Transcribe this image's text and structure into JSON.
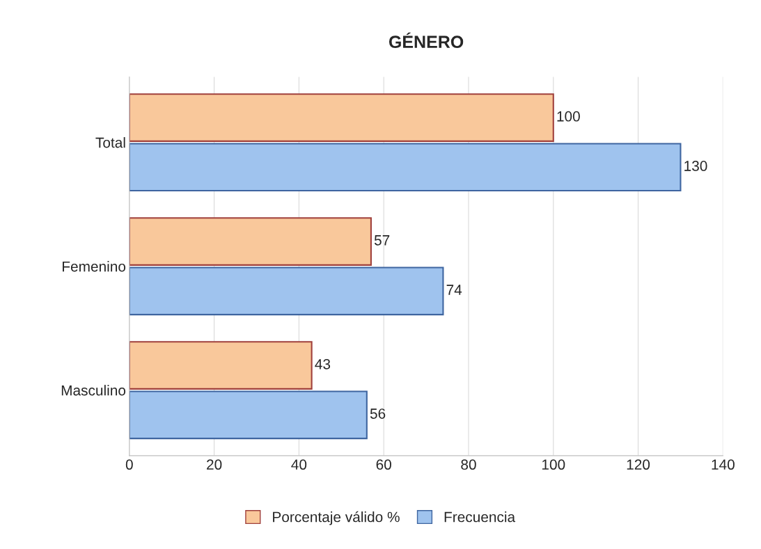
{
  "chart_data": {
    "type": "bar",
    "orientation": "horizontal",
    "title": "GÉNERO",
    "categories": [
      "Total",
      "Femenino",
      "Masculino"
    ],
    "series": [
      {
        "name": "Porcentaje válido %",
        "color": "#f9c89b",
        "values": [
          100,
          57,
          43
        ]
      },
      {
        "name": "Frecuencia",
        "color": "#9fc3ee",
        "values": [
          130,
          74,
          56
        ]
      }
    ],
    "xlim": [
      0,
      140
    ],
    "xticks": [
      0,
      20,
      40,
      60,
      80,
      100,
      120,
      140
    ],
    "grid": "x",
    "legend": "bottom",
    "data_labels": true
  }
}
